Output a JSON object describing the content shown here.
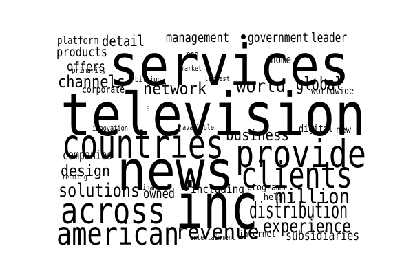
{
  "colors": {
    "background": "#ffffff",
    "text": "#000000"
  },
  "words": [
    {
      "name": "word-services",
      "text": "services"
    },
    {
      "name": "word-television",
      "text": "television"
    },
    {
      "name": "word-news",
      "text": "news"
    },
    {
      "name": "word-inc",
      "text": "inc"
    },
    {
      "name": "word-countries",
      "text": "countries"
    },
    {
      "name": "word-provide",
      "text": "provide"
    },
    {
      "name": "word-clients",
      "text": "clients"
    },
    {
      "name": "word-across",
      "text": "across"
    },
    {
      "name": "word-american",
      "text": "american"
    },
    {
      "name": "word-distribution",
      "text": "distribution"
    },
    {
      "name": "word-experience",
      "text": "experience"
    },
    {
      "name": "word-revenue",
      "text": "revenue"
    },
    {
      "name": "word-million",
      "text": "million"
    },
    {
      "name": "word-world",
      "text": "world"
    },
    {
      "name": "word-global",
      "text": "global"
    },
    {
      "name": "word-network",
      "text": "network"
    },
    {
      "name": "word-channels",
      "text": "channels"
    },
    {
      "name": "word-business",
      "text": "business"
    },
    {
      "name": "word-design",
      "text": "design"
    },
    {
      "name": "word-solutions",
      "text": "solutions"
    },
    {
      "name": "word-detail",
      "text": "detail"
    },
    {
      "name": "word-management",
      "text": "management"
    },
    {
      "name": "word-government",
      "text": "government"
    },
    {
      "name": "word-leader",
      "text": "leader"
    },
    {
      "name": "word-platform",
      "text": "platform"
    },
    {
      "name": "word-products",
      "text": "products"
    },
    {
      "name": "word-offers",
      "text": "offers"
    },
    {
      "name": "word-home",
      "text": "home"
    },
    {
      "name": "word-companies",
      "text": "companies"
    },
    {
      "name": "word-owned",
      "text": "owned"
    },
    {
      "name": "word-including",
      "text": "including"
    },
    {
      "name": "word-subsidiaries",
      "text": "subsidiaries"
    },
    {
      "name": "word-corporate",
      "text": "corporate"
    },
    {
      "name": "word-worldwide",
      "text": "worldwide"
    },
    {
      "name": "word-digital",
      "text": "digital"
    },
    {
      "name": "word-new",
      "text": "new"
    },
    {
      "name": "word-programs",
      "text": "programs"
    },
    {
      "name": "word-help",
      "text": "help"
    },
    {
      "name": "word-internet",
      "text": "internet"
    },
    {
      "name": "word-entertainment",
      "text": "entertainment"
    },
    {
      "name": "word-primarily",
      "text": "primarily"
    },
    {
      "name": "word-one",
      "text": "one"
    },
    {
      "name": "word-market",
      "text": "market"
    },
    {
      "name": "word-billion",
      "text": "billion"
    },
    {
      "name": "word-largest",
      "text": "largest"
    },
    {
      "name": "word-innovation",
      "text": "innovation"
    },
    {
      "name": "word-available",
      "text": "available"
    },
    {
      "name": "word-leading",
      "text": "leading"
    },
    {
      "name": "word-financial",
      "text": "financial"
    },
    {
      "name": "word-s",
      "text": "s"
    }
  ]
}
